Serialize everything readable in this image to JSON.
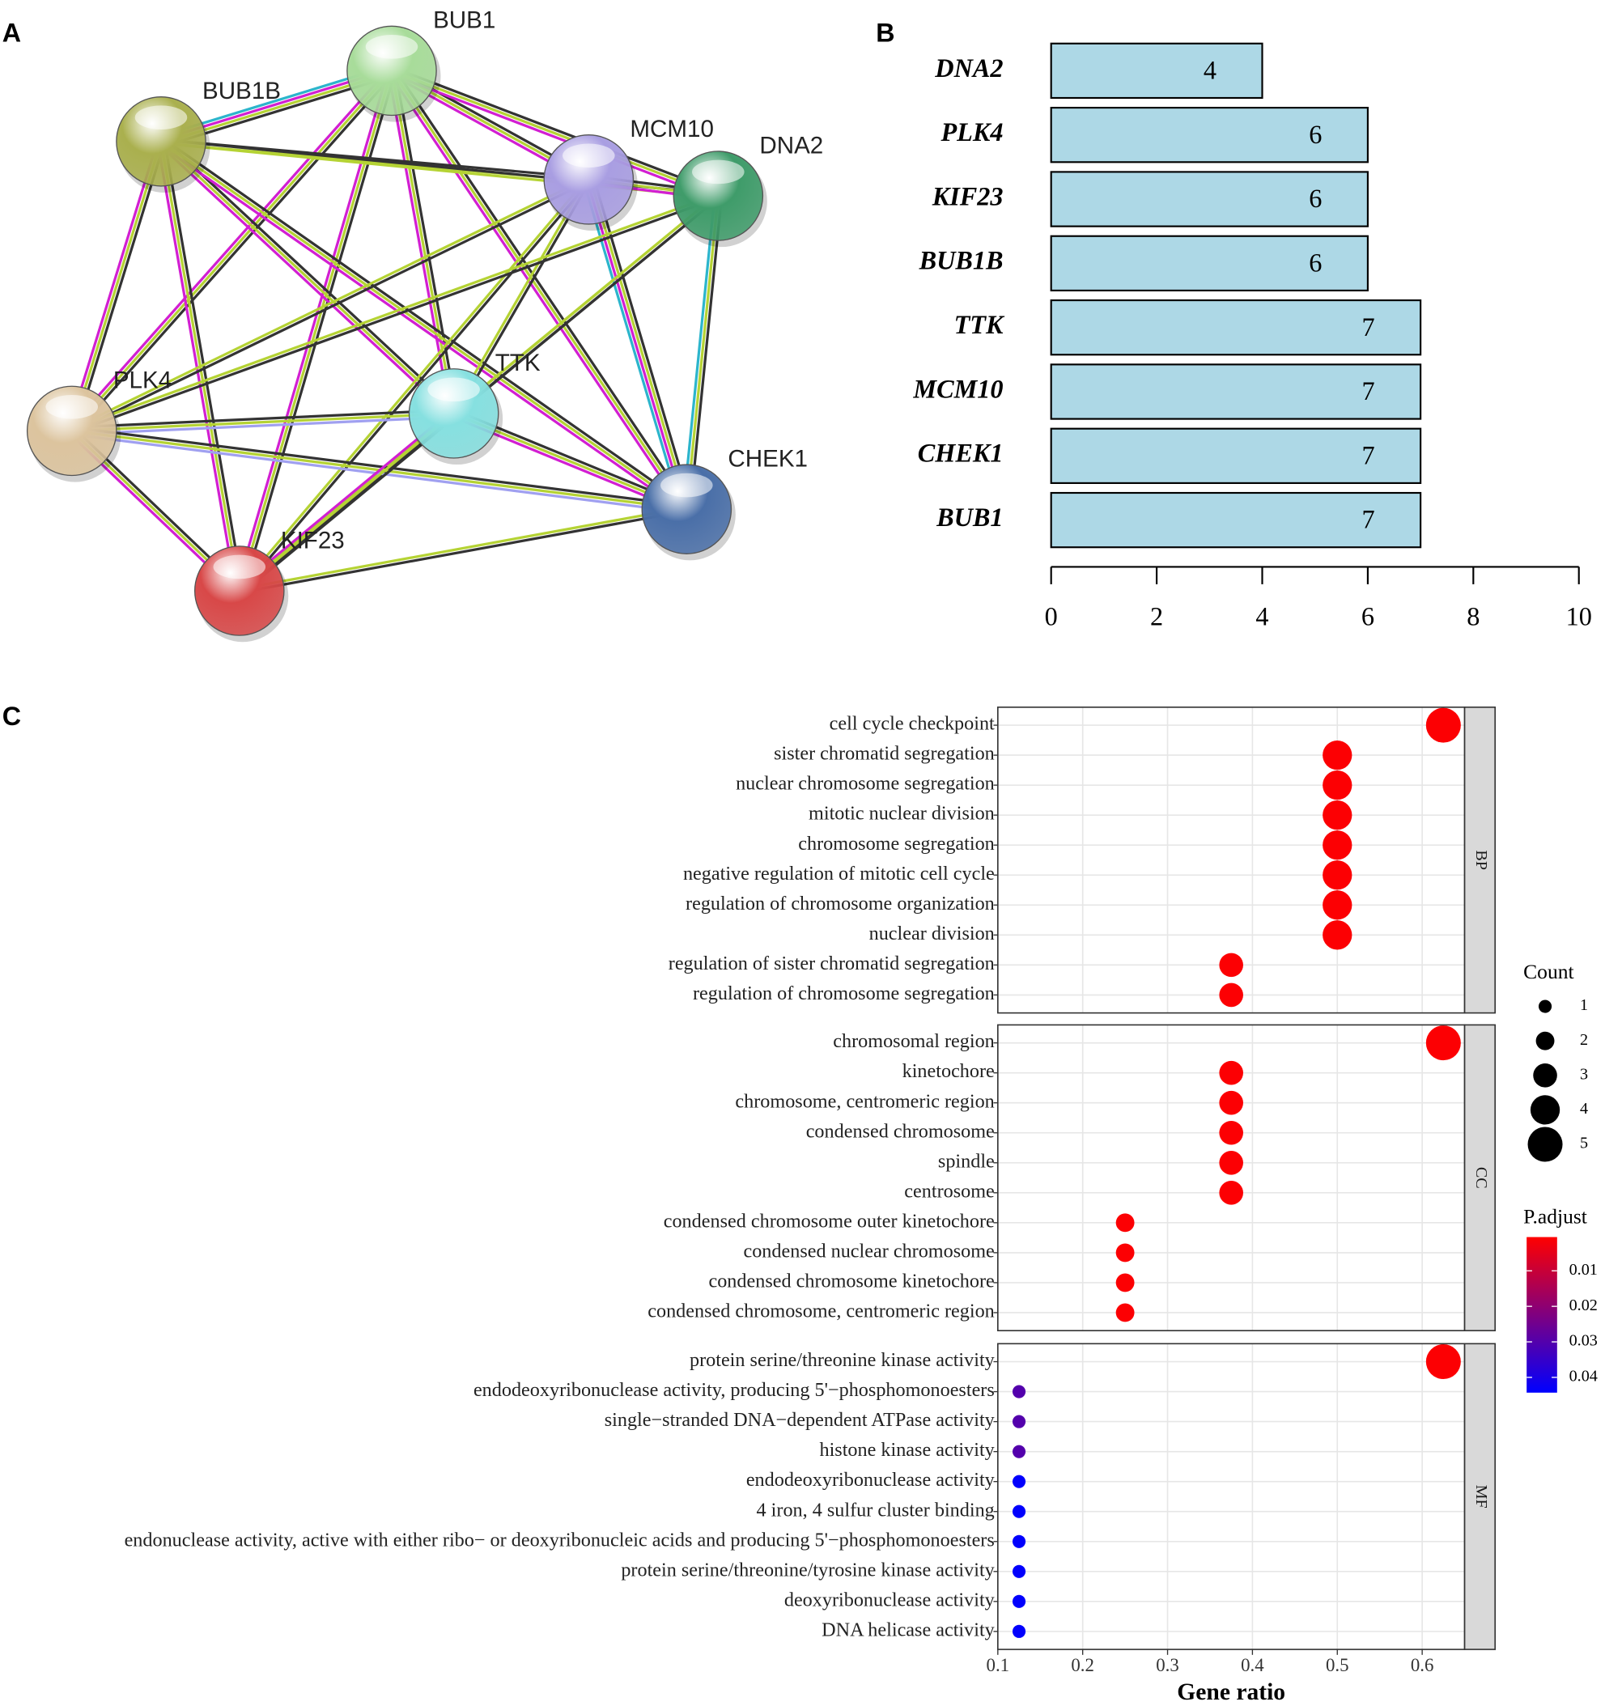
{
  "chart_data": [
    {
      "type": "network",
      "panel_label": "A",
      "nodes": [
        "BUB1",
        "BUB1B",
        "MCM10",
        "DNA2",
        "PLK4",
        "TTK",
        "CHEK1",
        "KIF23"
      ]
    },
    {
      "type": "bar",
      "panel_label": "B",
      "orientation": "horizontal",
      "categories": [
        "DNA2",
        "PLK4",
        "KIF23",
        "BUB1B",
        "TTK",
        "MCM10",
        "CHEK1",
        "BUB1"
      ],
      "values": [
        4,
        6,
        6,
        6,
        7,
        7,
        7,
        7
      ],
      "color": "#add8e6",
      "xlim": [
        0,
        10
      ],
      "xticks": [
        0,
        2,
        4,
        6,
        8,
        10
      ]
    },
    {
      "type": "dot",
      "panel_label": "C",
      "x_label": "Gene ratio",
      "xlim": [
        0.1,
        0.65
      ],
      "xticks": [
        0.1,
        0.2,
        0.3,
        0.4,
        0.5,
        0.6
      ],
      "grid": true,
      "size_legend_title": "Count",
      "size_ticks": [
        1,
        2,
        3,
        4,
        5
      ],
      "color_legend_title": "P.adjust",
      "clim": [
        0.0005,
        0.0443
      ],
      "cticks": [
        0.01,
        0.02,
        0.03,
        0.04
      ],
      "color_low": "#ff0000",
      "color_high": "#0000ff",
      "facets": [
        {
          "name": "BP",
          "categories": [
            "cell cycle checkpoint",
            "sister chromatid segregation",
            "nuclear chromosome segregation",
            "mitotic nuclear division",
            "chromosome segregation",
            "negative regulation of mitotic cell cycle",
            "regulation of chromosome organization",
            "nuclear division",
            "regulation of sister chromatid segregation",
            "regulation of chromosome segregation"
          ],
          "values": [
            0.625,
            0.5,
            0.5,
            0.5,
            0.5,
            0.5,
            0.5,
            0.5,
            0.375,
            0.375
          ],
          "counts": [
            5,
            4,
            4,
            4,
            4,
            4,
            4,
            4,
            3,
            3
          ],
          "p_adjust": [
            0.001,
            0.001,
            0.001,
            0.001,
            0.001,
            0.001,
            0.001,
            0.001,
            0.001,
            0.001
          ]
        },
        {
          "name": "CC",
          "categories": [
            "chromosomal region",
            "kinetochore",
            "chromosome, centromeric region",
            "condensed chromosome",
            "spindle",
            "centrosome",
            "condensed chromosome outer kinetochore",
            "condensed nuclear chromosome",
            "condensed chromosome kinetochore",
            "condensed chromosome, centromeric region"
          ],
          "values": [
            0.625,
            0.375,
            0.375,
            0.375,
            0.375,
            0.375,
            0.25,
            0.25,
            0.25,
            0.25
          ],
          "counts": [
            5,
            3,
            3,
            3,
            3,
            3,
            2,
            2,
            2,
            2
          ],
          "p_adjust": [
            0.001,
            0.001,
            0.001,
            0.001,
            0.001,
            0.001,
            0.001,
            0.001,
            0.001,
            0.001
          ]
        },
        {
          "name": "MF",
          "categories": [
            "protein serine/threonine kinase activity",
            "endodeoxyribonuclease activity, producing 5'−phosphomonoesters",
            "single−stranded DNA−dependent ATPase activity",
            "histone kinase activity",
            "endodeoxyribonuclease activity",
            "4 iron, 4 sulfur cluster binding",
            "endonuclease activity, active with either ribo− or deoxyribonucleic acids and producing 5'−phosphomonoesters",
            "protein serine/threonine/tyrosine kinase activity",
            "deoxyribonuclease activity",
            "DNA helicase activity"
          ],
          "values": [
            0.625,
            0.125,
            0.125,
            0.125,
            0.125,
            0.125,
            0.125,
            0.125,
            0.125,
            0.125
          ],
          "counts": [
            5,
            1,
            1,
            1,
            1,
            1,
            1,
            1,
            1,
            1
          ],
          "p_adjust": [
            0.001,
            0.03,
            0.03,
            0.03,
            0.044,
            0.044,
            0.044,
            0.044,
            0.044,
            0.044
          ]
        }
      ]
    }
  ]
}
